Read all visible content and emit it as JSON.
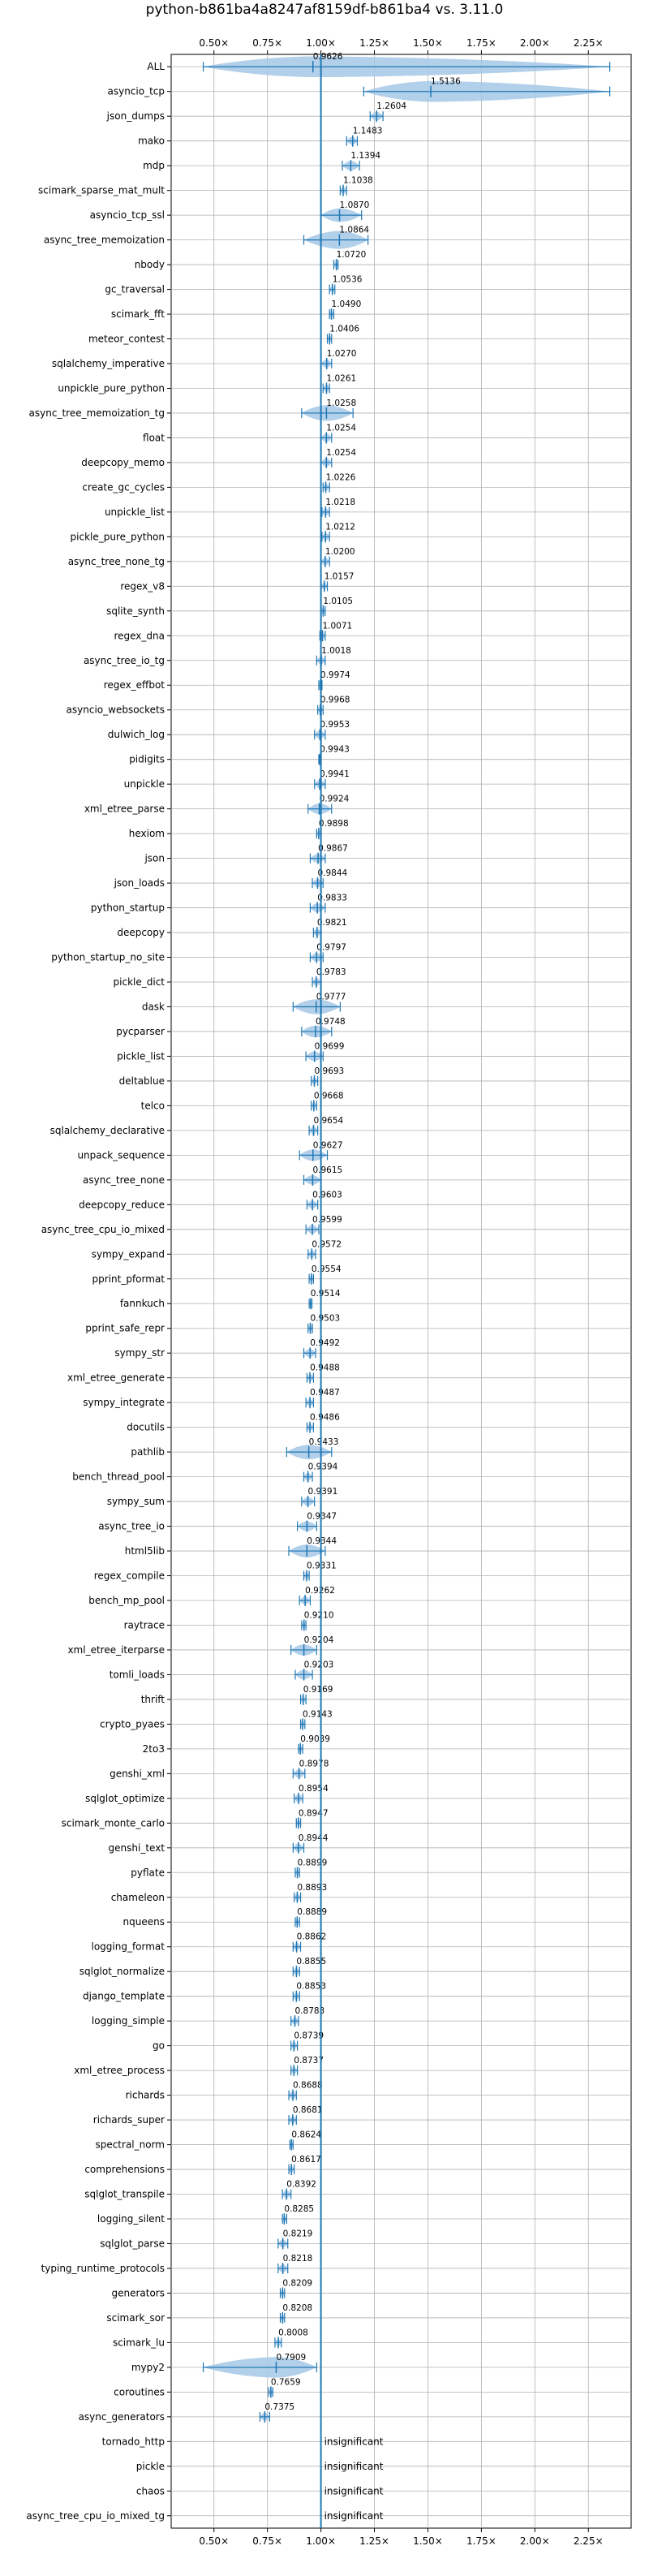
{
  "chart_data": {
    "type": "violin",
    "title": "python-b861ba4a8247af8159df-b861ba4 vs. 3.11.0",
    "xlabel": "",
    "ylabel": "",
    "xlim": [
      0.3,
      2.45
    ],
    "reference_line": 1.0,
    "x_ticks": [
      0.5,
      0.75,
      1.0,
      1.25,
      1.5,
      1.75,
      2.0,
      2.25
    ],
    "x_tick_labels": [
      "0.50×",
      "0.75×",
      "1.00×",
      "1.25×",
      "1.50×",
      "1.75×",
      "2.00×",
      "2.25×"
    ],
    "grid": true,
    "colors": {
      "violin": "#a6c8e6",
      "median": "#1f77b4",
      "refline": "#1f77b4",
      "grid": "#b0b0b0"
    },
    "insignificant_label": "insignificant",
    "benchmarks": [
      {
        "name": "ALL",
        "label": "0.9626",
        "value": 0.9626,
        "min": 0.45,
        "max": 2.35
      },
      {
        "name": "asyncio_tcp",
        "label": "1.5136",
        "value": 1.5136,
        "min": 1.2,
        "max": 2.35
      },
      {
        "name": "json_dumps",
        "label": "1.2604",
        "value": 1.2604,
        "min": 1.23,
        "max": 1.29
      },
      {
        "name": "mako",
        "label": "1.1483",
        "value": 1.1483,
        "min": 1.12,
        "max": 1.17
      },
      {
        "name": "mdp",
        "label": "1.1394",
        "value": 1.1394,
        "min": 1.1,
        "max": 1.18
      },
      {
        "name": "scimark_sparse_mat_mult",
        "label": "1.1038",
        "value": 1.1038,
        "min": 1.09,
        "max": 1.12
      },
      {
        "name": "asyncio_tcp_ssl",
        "label": "1.0870",
        "value": 1.087,
        "min": 1.0,
        "max": 1.19
      },
      {
        "name": "async_tree_memoization",
        "label": "1.0864",
        "value": 1.0864,
        "min": 0.92,
        "max": 1.22
      },
      {
        "name": "nbody",
        "label": "1.0720",
        "value": 1.072,
        "min": 1.06,
        "max": 1.08
      },
      {
        "name": "gc_traversal",
        "label": "1.0536",
        "value": 1.0536,
        "min": 1.04,
        "max": 1.065
      },
      {
        "name": "scimark_fft",
        "label": "1.0490",
        "value": 1.049,
        "min": 1.04,
        "max": 1.06
      },
      {
        "name": "meteor_contest",
        "label": "1.0406",
        "value": 1.0406,
        "min": 1.03,
        "max": 1.05
      },
      {
        "name": "sqlalchemy_imperative",
        "label": "1.0270",
        "value": 1.027,
        "min": 1.0,
        "max": 1.05
      },
      {
        "name": "unpickle_pure_python",
        "label": "1.0261",
        "value": 1.0261,
        "min": 1.01,
        "max": 1.04
      },
      {
        "name": "async_tree_memoization_tg",
        "label": "1.0258",
        "value": 1.0258,
        "min": 0.91,
        "max": 1.15
      },
      {
        "name": "float",
        "label": "1.0254",
        "value": 1.0254,
        "min": 1.0,
        "max": 1.05
      },
      {
        "name": "deepcopy_memo",
        "label": "1.0254",
        "value": 1.0254,
        "min": 1.0,
        "max": 1.05
      },
      {
        "name": "create_gc_cycles",
        "label": "1.0226",
        "value": 1.0226,
        "min": 1.01,
        "max": 1.04
      },
      {
        "name": "unpickle_list",
        "label": "1.0218",
        "value": 1.0218,
        "min": 1.005,
        "max": 1.04
      },
      {
        "name": "pickle_pure_python",
        "label": "1.0212",
        "value": 1.0212,
        "min": 1.005,
        "max": 1.04
      },
      {
        "name": "async_tree_none_tg",
        "label": "1.0200",
        "value": 1.02,
        "min": 1.0,
        "max": 1.04
      },
      {
        "name": "regex_v8",
        "label": "1.0157",
        "value": 1.0157,
        "min": 1.0,
        "max": 1.03
      },
      {
        "name": "sqlite_synth",
        "label": "1.0105",
        "value": 1.0105,
        "min": 1.0,
        "max": 1.02
      },
      {
        "name": "regex_dna",
        "label": "1.0071",
        "value": 1.0071,
        "min": 0.995,
        "max": 1.02
      },
      {
        "name": "async_tree_io_tg",
        "label": "1.0018",
        "value": 1.0018,
        "min": 0.98,
        "max": 1.02
      },
      {
        "name": "regex_effbot",
        "label": "0.9974",
        "value": 0.9974,
        "min": 0.99,
        "max": 1.005
      },
      {
        "name": "asyncio_websockets",
        "label": "0.9968",
        "value": 0.9968,
        "min": 0.985,
        "max": 1.01
      },
      {
        "name": "dulwich_log",
        "label": "0.9953",
        "value": 0.9953,
        "min": 0.97,
        "max": 1.02
      },
      {
        "name": "pidigits",
        "label": "0.9943",
        "value": 0.9943,
        "min": 0.99,
        "max": 1.0
      },
      {
        "name": "unpickle",
        "label": "0.9941",
        "value": 0.9941,
        "min": 0.97,
        "max": 1.02
      },
      {
        "name": "xml_etree_parse",
        "label": "0.9924",
        "value": 0.9924,
        "min": 0.94,
        "max": 1.05
      },
      {
        "name": "hexiom",
        "label": "0.9898",
        "value": 0.9898,
        "min": 0.98,
        "max": 1.0
      },
      {
        "name": "json",
        "label": "0.9867",
        "value": 0.9867,
        "min": 0.95,
        "max": 1.02
      },
      {
        "name": "json_loads",
        "label": "0.9844",
        "value": 0.9844,
        "min": 0.96,
        "max": 1.01
      },
      {
        "name": "python_startup",
        "label": "0.9833",
        "value": 0.9833,
        "min": 0.95,
        "max": 1.02
      },
      {
        "name": "deepcopy",
        "label": "0.9821",
        "value": 0.9821,
        "min": 0.965,
        "max": 1.0
      },
      {
        "name": "python_startup_no_site",
        "label": "0.9797",
        "value": 0.9797,
        "min": 0.95,
        "max": 1.01
      },
      {
        "name": "pickle_dict",
        "label": "0.9783",
        "value": 0.9783,
        "min": 0.96,
        "max": 1.0
      },
      {
        "name": "dask",
        "label": "0.9777",
        "value": 0.9777,
        "min": 0.87,
        "max": 1.09
      },
      {
        "name": "pycparser",
        "label": "0.9748",
        "value": 0.9748,
        "min": 0.91,
        "max": 1.05
      },
      {
        "name": "pickle_list",
        "label": "0.9699",
        "value": 0.9699,
        "min": 0.93,
        "max": 1.01
      },
      {
        "name": "deltablue",
        "label": "0.9693",
        "value": 0.9693,
        "min": 0.955,
        "max": 0.985
      },
      {
        "name": "telco",
        "label": "0.9668",
        "value": 0.9668,
        "min": 0.955,
        "max": 0.98
      },
      {
        "name": "sqlalchemy_declarative",
        "label": "0.9654",
        "value": 0.9654,
        "min": 0.945,
        "max": 0.985
      },
      {
        "name": "unpack_sequence",
        "label": "0.9627",
        "value": 0.9627,
        "min": 0.9,
        "max": 1.03
      },
      {
        "name": "async_tree_none",
        "label": "0.9615",
        "value": 0.9615,
        "min": 0.92,
        "max": 1.0
      },
      {
        "name": "deepcopy_reduce",
        "label": "0.9603",
        "value": 0.9603,
        "min": 0.935,
        "max": 0.985
      },
      {
        "name": "async_tree_cpu_io_mixed",
        "label": "0.9599",
        "value": 0.9599,
        "min": 0.93,
        "max": 0.99
      },
      {
        "name": "sympy_expand",
        "label": "0.9572",
        "value": 0.9572,
        "min": 0.94,
        "max": 0.975
      },
      {
        "name": "pprint_pformat",
        "label": "0.9554",
        "value": 0.9554,
        "min": 0.945,
        "max": 0.965
      },
      {
        "name": "fannkuch",
        "label": "0.9514",
        "value": 0.9514,
        "min": 0.945,
        "max": 0.958
      },
      {
        "name": "pprint_safe_repr",
        "label": "0.9503",
        "value": 0.9503,
        "min": 0.94,
        "max": 0.96
      },
      {
        "name": "sympy_str",
        "label": "0.9492",
        "value": 0.9492,
        "min": 0.92,
        "max": 0.975
      },
      {
        "name": "xml_etree_generate",
        "label": "0.9488",
        "value": 0.9488,
        "min": 0.935,
        "max": 0.965
      },
      {
        "name": "sympy_integrate",
        "label": "0.9487",
        "value": 0.9487,
        "min": 0.93,
        "max": 0.965
      },
      {
        "name": "docutils",
        "label": "0.9486",
        "value": 0.9486,
        "min": 0.935,
        "max": 0.965
      },
      {
        "name": "pathlib",
        "label": "0.9433",
        "value": 0.9433,
        "min": 0.84,
        "max": 1.05
      },
      {
        "name": "bench_thread_pool",
        "label": "0.9394",
        "value": 0.9394,
        "min": 0.92,
        "max": 0.96
      },
      {
        "name": "sympy_sum",
        "label": "0.9391",
        "value": 0.9391,
        "min": 0.91,
        "max": 0.97
      },
      {
        "name": "async_tree_io",
        "label": "0.9347",
        "value": 0.9347,
        "min": 0.89,
        "max": 0.98
      },
      {
        "name": "html5lib",
        "label": "0.9344",
        "value": 0.9344,
        "min": 0.85,
        "max": 1.02
      },
      {
        "name": "regex_compile",
        "label": "0.9331",
        "value": 0.9331,
        "min": 0.92,
        "max": 0.945
      },
      {
        "name": "bench_mp_pool",
        "label": "0.9262",
        "value": 0.9262,
        "min": 0.9,
        "max": 0.95
      },
      {
        "name": "raytrace",
        "label": "0.9210",
        "value": 0.921,
        "min": 0.91,
        "max": 0.93
      },
      {
        "name": "xml_etree_iterparse",
        "label": "0.9204",
        "value": 0.9204,
        "min": 0.86,
        "max": 0.98
      },
      {
        "name": "tomli_loads",
        "label": "0.9203",
        "value": 0.9203,
        "min": 0.88,
        "max": 0.96
      },
      {
        "name": "thrift",
        "label": "0.9169",
        "value": 0.9169,
        "min": 0.905,
        "max": 0.93
      },
      {
        "name": "crypto_pyaes",
        "label": "0.9143",
        "value": 0.9143,
        "min": 0.905,
        "max": 0.925
      },
      {
        "name": "2to3",
        "label": "0.9039",
        "value": 0.9039,
        "min": 0.895,
        "max": 0.915
      },
      {
        "name": "genshi_xml",
        "label": "0.8978",
        "value": 0.8978,
        "min": 0.87,
        "max": 0.925
      },
      {
        "name": "sqlglot_optimize",
        "label": "0.8954",
        "value": 0.8954,
        "min": 0.875,
        "max": 0.915
      },
      {
        "name": "scimark_monte_carlo",
        "label": "0.8947",
        "value": 0.8947,
        "min": 0.885,
        "max": 0.905
      },
      {
        "name": "genshi_text",
        "label": "0.8944",
        "value": 0.8944,
        "min": 0.87,
        "max": 0.92
      },
      {
        "name": "pyflate",
        "label": "0.8899",
        "value": 0.8899,
        "min": 0.88,
        "max": 0.9
      },
      {
        "name": "chameleon",
        "label": "0.8893",
        "value": 0.8893,
        "min": 0.875,
        "max": 0.905
      },
      {
        "name": "nqueens",
        "label": "0.8889",
        "value": 0.8889,
        "min": 0.88,
        "max": 0.9
      },
      {
        "name": "logging_format",
        "label": "0.8862",
        "value": 0.8862,
        "min": 0.87,
        "max": 0.905
      },
      {
        "name": "sqlglot_normalize",
        "label": "0.8855",
        "value": 0.8855,
        "min": 0.87,
        "max": 0.9
      },
      {
        "name": "django_template",
        "label": "0.8853",
        "value": 0.8853,
        "min": 0.87,
        "max": 0.9
      },
      {
        "name": "logging_simple",
        "label": "0.8783",
        "value": 0.8783,
        "min": 0.86,
        "max": 0.895
      },
      {
        "name": "go",
        "label": "0.8739",
        "value": 0.8739,
        "min": 0.86,
        "max": 0.89
      },
      {
        "name": "xml_etree_process",
        "label": "0.8737",
        "value": 0.8737,
        "min": 0.86,
        "max": 0.89
      },
      {
        "name": "richards",
        "label": "0.8688",
        "value": 0.8688,
        "min": 0.85,
        "max": 0.885
      },
      {
        "name": "richards_super",
        "label": "0.8681",
        "value": 0.8681,
        "min": 0.85,
        "max": 0.885
      },
      {
        "name": "spectral_norm",
        "label": "0.8624",
        "value": 0.8624,
        "min": 0.855,
        "max": 0.87
      },
      {
        "name": "comprehensions",
        "label": "0.8617",
        "value": 0.8617,
        "min": 0.85,
        "max": 0.875
      },
      {
        "name": "sqlglot_transpile",
        "label": "0.8392",
        "value": 0.8392,
        "min": 0.82,
        "max": 0.86
      },
      {
        "name": "logging_silent",
        "label": "0.8285",
        "value": 0.8285,
        "min": 0.82,
        "max": 0.84
      },
      {
        "name": "sqlglot_parse",
        "label": "0.8219",
        "value": 0.8219,
        "min": 0.8,
        "max": 0.845
      },
      {
        "name": "typing_runtime_protocols",
        "label": "0.8218",
        "value": 0.8218,
        "min": 0.8,
        "max": 0.845
      },
      {
        "name": "generators",
        "label": "0.8209",
        "value": 0.8209,
        "min": 0.81,
        "max": 0.83
      },
      {
        "name": "scimark_sor",
        "label": "0.8208",
        "value": 0.8208,
        "min": 0.81,
        "max": 0.83
      },
      {
        "name": "scimark_lu",
        "label": "0.8008",
        "value": 0.8008,
        "min": 0.785,
        "max": 0.815
      },
      {
        "name": "mypy2",
        "label": "0.7909",
        "value": 0.7909,
        "min": 0.45,
        "max": 0.98
      },
      {
        "name": "coroutines",
        "label": "0.7659",
        "value": 0.7659,
        "min": 0.755,
        "max": 0.775
      },
      {
        "name": "async_generators",
        "label": "0.7375",
        "value": 0.7375,
        "min": 0.715,
        "max": 0.76
      },
      {
        "name": "tornado_http",
        "label": "",
        "value": null,
        "min": null,
        "max": null
      },
      {
        "name": "pickle",
        "label": "",
        "value": null,
        "min": null,
        "max": null
      },
      {
        "name": "chaos",
        "label": "",
        "value": null,
        "min": null,
        "max": null
      },
      {
        "name": "async_tree_cpu_io_mixed_tg",
        "label": "",
        "value": null,
        "min": null,
        "max": null
      }
    ]
  }
}
